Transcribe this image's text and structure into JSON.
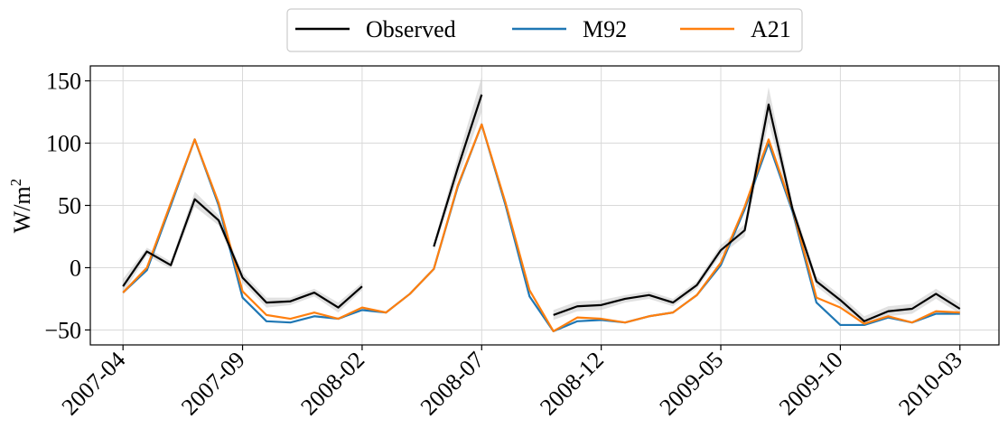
{
  "chart_data": {
    "type": "line",
    "title": "",
    "xlabel": "",
    "ylabel": "W/m²",
    "ylabel_base": "W/m",
    "ylabel_sup": "2",
    "ylim": [
      -62,
      162
    ],
    "xlim": [
      "2007-02-20",
      "2010-04-20"
    ],
    "grid": true,
    "legend_position": "top-center",
    "y_ticks": [
      -50,
      0,
      50,
      100,
      150
    ],
    "y_tick_labels": [
      "−50",
      "0",
      "50",
      "100",
      "150"
    ],
    "x_ticks": [
      "2007-04",
      "2007-09",
      "2008-02",
      "2008-07",
      "2008-12",
      "2009-05",
      "2009-10",
      "2010-03"
    ],
    "x": [
      "2007-04",
      "2007-05",
      "2007-06",
      "2007-07",
      "2007-08",
      "2007-09",
      "2007-10",
      "2007-11",
      "2007-12",
      "2008-01",
      "2008-02",
      "2008-03",
      "2008-04",
      "2008-05",
      "2008-06",
      "2008-07",
      "2008-08",
      "2008-09",
      "2008-10",
      "2008-11",
      "2008-12",
      "2009-01",
      "2009-02",
      "2009-03",
      "2009-04",
      "2009-05",
      "2009-06",
      "2009-07",
      "2009-08",
      "2009-09",
      "2009-10",
      "2009-11",
      "2009-12",
      "2010-01",
      "2010-02",
      "2010-03"
    ],
    "series": [
      {
        "name": "Observed",
        "color": "#000000",
        "values": [
          -15,
          13,
          2,
          55,
          38,
          -8,
          -28,
          -27,
          -20,
          -32,
          -15,
          null,
          null,
          17,
          80,
          139,
          null,
          null,
          -38,
          -31,
          -30,
          -25,
          -22,
          -28,
          -14,
          14,
          30,
          131,
          47,
          -11,
          -26,
          -43,
          -35,
          -33,
          -21,
          -33
        ],
        "band": [
          6,
          3,
          3,
          6,
          4,
          4,
          4,
          3,
          3,
          4,
          3,
          null,
          null,
          3,
          8,
          14,
          null,
          null,
          4,
          4,
          4,
          3,
          3,
          3,
          3,
          4,
          5,
          14,
          5,
          4,
          4,
          4,
          4,
          4,
          4,
          4
        ]
      },
      {
        "name": "M92",
        "color": "#1f77b4",
        "values": [
          -20,
          -2,
          50,
          103,
          50,
          -24,
          -43,
          -44,
          -39,
          -41,
          -34,
          -36,
          -21,
          -1,
          65,
          115,
          50,
          -23,
          -51,
          -43,
          -42,
          -44,
          -39,
          -36,
          -22,
          2,
          47,
          100,
          45,
          -28,
          -46,
          -46,
          -40,
          -44,
          -37,
          -37
        ]
      },
      {
        "name": "A21",
        "color": "#ff7f0e",
        "values": [
          -20,
          0,
          52,
          103,
          52,
          -19,
          -38,
          -41,
          -36,
          -41,
          -32,
          -36,
          -21,
          -1,
          66,
          115,
          52,
          -18,
          -51,
          -40,
          -41,
          -44,
          -39,
          -36,
          -22,
          4,
          49,
          103,
          47,
          -24,
          -32,
          -45,
          -39,
          -44,
          -35,
          -36
        ]
      }
    ]
  }
}
